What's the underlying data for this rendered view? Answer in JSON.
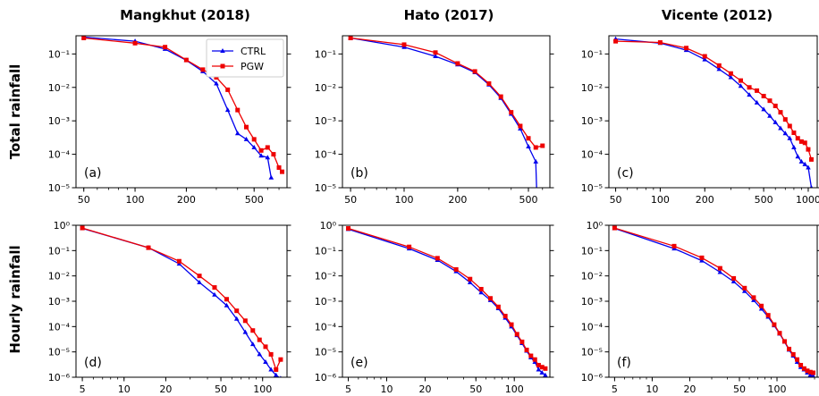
{
  "colors": {
    "CTRL": "#0000ee",
    "PGW": "#ee0000"
  },
  "column_titles": [
    "Mangkhut (2018)",
    "Hato (2017)",
    "Vicente (2012)"
  ],
  "row_titles": [
    "Total  rainfall",
    "Hourly  rainfall"
  ],
  "legend": {
    "entries": [
      "CTRL",
      "PGW"
    ],
    "placement": "top-right of panel (a)"
  },
  "chart_data": [
    {
      "panel": "(a)",
      "type": "line",
      "xscale": "log",
      "yscale": "log",
      "xlim": [
        45,
        780
      ],
      "ylim": [
        1e-05,
        0.35
      ],
      "xticks": [
        50,
        100,
        200,
        500
      ],
      "xtick_labels": [
        "50",
        "100",
        "200",
        "500"
      ],
      "yticks": [
        1e-05,
        0.0001,
        0.001,
        0.01,
        0.1
      ],
      "ytick_labels": [
        "10⁻⁵",
        "10⁻⁴",
        "10⁻³",
        "10⁻²",
        "10⁻¹"
      ],
      "series": [
        {
          "name": "CTRL",
          "x": [
            50,
            100,
            150,
            200,
            250,
            300,
            350,
            400,
            450,
            500,
            550,
            600,
            630
          ],
          "y": [
            0.32,
            0.24,
            0.14,
            0.065,
            0.03,
            0.013,
            0.0021,
            0.00042,
            0.00028,
            0.00016,
            9e-05,
            8e-05,
            2e-05
          ]
        },
        {
          "name": "PGW",
          "x": [
            50,
            100,
            150,
            200,
            250,
            300,
            350,
            400,
            450,
            500,
            550,
            600,
            650,
            700,
            730
          ],
          "y": [
            0.3,
            0.21,
            0.16,
            0.066,
            0.034,
            0.02,
            0.0085,
            0.0021,
            0.00065,
            0.00028,
            0.00013,
            0.00016,
            0.0001,
            4e-05,
            3e-05
          ]
        }
      ]
    },
    {
      "panel": "(b)",
      "type": "line",
      "xscale": "log",
      "yscale": "log",
      "xlim": [
        45,
        660
      ],
      "ylim": [
        1e-05,
        0.35
      ],
      "xticks": [
        50,
        100,
        200,
        500
      ],
      "xtick_labels": [
        "50",
        "100",
        "200",
        "500"
      ],
      "yticks": [
        1e-05,
        0.0001,
        0.001,
        0.01,
        0.1
      ],
      "ytick_labels": [
        "10⁻⁵",
        "10⁻⁴",
        "10⁻³",
        "10⁻²",
        "10⁻¹"
      ],
      "series": [
        {
          "name": "CTRL",
          "x": [
            50,
            100,
            150,
            200,
            250,
            300,
            350,
            400,
            450,
            500,
            550,
            560
          ],
          "y": [
            0.3,
            0.16,
            0.085,
            0.048,
            0.028,
            0.012,
            0.0048,
            0.0016,
            0.00058,
            0.00017,
            6e-05,
            3e-06
          ]
        },
        {
          "name": "PGW",
          "x": [
            50,
            100,
            150,
            200,
            250,
            300,
            350,
            400,
            450,
            500,
            550,
            600
          ],
          "y": [
            0.3,
            0.19,
            0.11,
            0.052,
            0.03,
            0.013,
            0.0053,
            0.0018,
            0.0007,
            0.0003,
            0.00016,
            0.00018
          ]
        }
      ]
    },
    {
      "panel": "(c)",
      "type": "line",
      "xscale": "log",
      "yscale": "log",
      "xlim": [
        45,
        1150
      ],
      "ylim": [
        1e-05,
        0.35
      ],
      "xticks": [
        50,
        100,
        200,
        500,
        1000
      ],
      "xtick_labels": [
        "50",
        "100",
        "200",
        "500",
        "1000"
      ],
      "yticks": [
        1e-05,
        0.0001,
        0.001,
        0.01,
        0.1
      ],
      "ytick_labels": [
        "10⁻⁵",
        "10⁻⁴",
        "10⁻³",
        "10⁻²",
        "10⁻¹"
      ],
      "series": [
        {
          "name": "CTRL",
          "x": [
            50,
            100,
            150,
            200,
            250,
            300,
            350,
            400,
            450,
            500,
            550,
            600,
            650,
            700,
            750,
            800,
            850,
            900,
            950,
            1000,
            1050
          ],
          "y": [
            0.28,
            0.21,
            0.13,
            0.068,
            0.035,
            0.02,
            0.011,
            0.006,
            0.0035,
            0.0022,
            0.0014,
            0.0009,
            0.0006,
            0.00042,
            0.0003,
            0.00016,
            8.5e-05,
            6e-05,
            5e-05,
            4e-05,
            1e-05
          ]
        },
        {
          "name": "PGW",
          "x": [
            50,
            100,
            150,
            200,
            250,
            300,
            350,
            400,
            450,
            500,
            550,
            600,
            650,
            700,
            750,
            800,
            850,
            900,
            950,
            1000,
            1050
          ],
          "y": [
            0.24,
            0.22,
            0.15,
            0.085,
            0.045,
            0.026,
            0.016,
            0.01,
            0.008,
            0.0055,
            0.004,
            0.0028,
            0.0018,
            0.0011,
            0.0007,
            0.00044,
            0.0003,
            0.00024,
            0.00022,
            0.00014,
            7e-05
          ]
        }
      ]
    },
    {
      "panel": "(d)",
      "type": "line",
      "xscale": "log",
      "yscale": "log",
      "xlim": [
        4.5,
        150
      ],
      "ylim": [
        1e-06,
        1
      ],
      "xticks": [
        5,
        10,
        20,
        50,
        100
      ],
      "xtick_labels": [
        "5",
        "10",
        "20",
        "50",
        "100"
      ],
      "yticks": [
        1e-06,
        1e-05,
        0.0001,
        0.001,
        0.01,
        0.1,
        1
      ],
      "ytick_labels": [
        "10⁻⁶",
        "10⁻⁵",
        "10⁻⁴",
        "10⁻³",
        "10⁻²",
        "10⁻¹",
        "10⁰"
      ],
      "series": [
        {
          "name": "CTRL",
          "x": [
            5,
            15,
            25,
            35,
            45,
            55,
            65,
            75,
            85,
            95,
            105,
            115,
            125,
            135
          ],
          "y": [
            0.75,
            0.13,
            0.03,
            0.0055,
            0.0018,
            0.00068,
            0.0002,
            6e-05,
            2e-05,
            8e-06,
            4e-06,
            2e-06,
            1.2e-06,
            9e-07
          ]
        },
        {
          "name": "PGW",
          "x": [
            5,
            15,
            25,
            35,
            45,
            55,
            65,
            75,
            85,
            95,
            105,
            115,
            125,
            135
          ],
          "y": [
            0.78,
            0.13,
            0.038,
            0.01,
            0.0035,
            0.0012,
            0.00042,
            0.00017,
            7e-05,
            3e-05,
            1.6e-05,
            8e-06,
            2e-06,
            5e-06
          ]
        }
      ]
    },
    {
      "panel": "(e)",
      "type": "line",
      "xscale": "log",
      "yscale": "log",
      "xlim": [
        4.5,
        190
      ],
      "ylim": [
        1e-06,
        1
      ],
      "xticks": [
        5,
        10,
        20,
        50,
        100
      ],
      "xtick_labels": [
        "5",
        "10",
        "20",
        "50",
        "100"
      ],
      "yticks": [
        1e-06,
        1e-05,
        0.0001,
        0.001,
        0.01,
        0.1,
        1
      ],
      "ytick_labels": [
        "10⁻⁶",
        "10⁻⁵",
        "10⁻⁴",
        "10⁻³",
        "10⁻²",
        "10⁻¹",
        "10⁰"
      ],
      "series": [
        {
          "name": "CTRL",
          "x": [
            5,
            15,
            25,
            35,
            45,
            55,
            65,
            75,
            85,
            95,
            105,
            115,
            125,
            135,
            145,
            155,
            165,
            175
          ],
          "y": [
            0.7,
            0.12,
            0.042,
            0.015,
            0.0055,
            0.0022,
            0.0011,
            0.00052,
            0.00022,
            0.0001,
            4.5e-05,
            2.2e-05,
            1.1e-05,
            6e-06,
            4e-06,
            2e-06,
            1.5e-06,
            1.2e-06
          ]
        },
        {
          "name": "PGW",
          "x": [
            5,
            15,
            25,
            35,
            45,
            55,
            65,
            75,
            85,
            95,
            105,
            115,
            125,
            135,
            145,
            155,
            165,
            175
          ],
          "y": [
            0.75,
            0.14,
            0.05,
            0.018,
            0.0075,
            0.003,
            0.0013,
            0.0006,
            0.00026,
            0.00012,
            5e-05,
            2.5e-05,
            1.2e-05,
            7e-06,
            5e-06,
            3e-06,
            2.5e-06,
            2.2e-06
          ]
        }
      ]
    },
    {
      "panel": "(f)",
      "type": "line",
      "xscale": "log",
      "yscale": "log",
      "xlim": [
        4.5,
        210
      ],
      "ylim": [
        1e-06,
        1
      ],
      "xticks": [
        5,
        10,
        20,
        50,
        100
      ],
      "xtick_labels": [
        "5",
        "10",
        "20",
        "50",
        "100"
      ],
      "yticks": [
        1e-06,
        1e-05,
        0.0001,
        0.001,
        0.01,
        0.1,
        1
      ],
      "ytick_labels": [
        "10⁻⁶",
        "10⁻⁵",
        "10⁻⁴",
        "10⁻³",
        "10⁻²",
        "10⁻¹",
        "10⁰"
      ],
      "series": [
        {
          "name": "CTRL",
          "x": [
            5,
            15,
            25,
            35,
            45,
            55,
            65,
            75,
            85,
            95,
            105,
            115,
            125,
            135,
            145,
            155,
            165,
            175,
            185,
            195
          ],
          "y": [
            0.75,
            0.12,
            0.04,
            0.014,
            0.006,
            0.0025,
            0.0011,
            0.0005,
            0.00024,
            0.00011,
            5.2e-05,
            2.5e-05,
            1.2e-05,
            7e-06,
            4e-06,
            2.5e-06,
            2e-06,
            1.5e-06,
            1.2e-06,
            1.1e-06
          ]
        },
        {
          "name": "PGW",
          "x": [
            5,
            15,
            25,
            35,
            45,
            55,
            65,
            75,
            85,
            95,
            105,
            115,
            125,
            135,
            145,
            155,
            165,
            175,
            185,
            195
          ],
          "y": [
            0.78,
            0.15,
            0.052,
            0.02,
            0.008,
            0.0033,
            0.0014,
            0.00065,
            0.00028,
            0.00012,
            5.5e-05,
            2.6e-05,
            1.3e-05,
            8e-06,
            5e-06,
            3e-06,
            2.2e-06,
            1.8e-06,
            1.6e-06,
            1.5e-06
          ]
        }
      ]
    }
  ]
}
